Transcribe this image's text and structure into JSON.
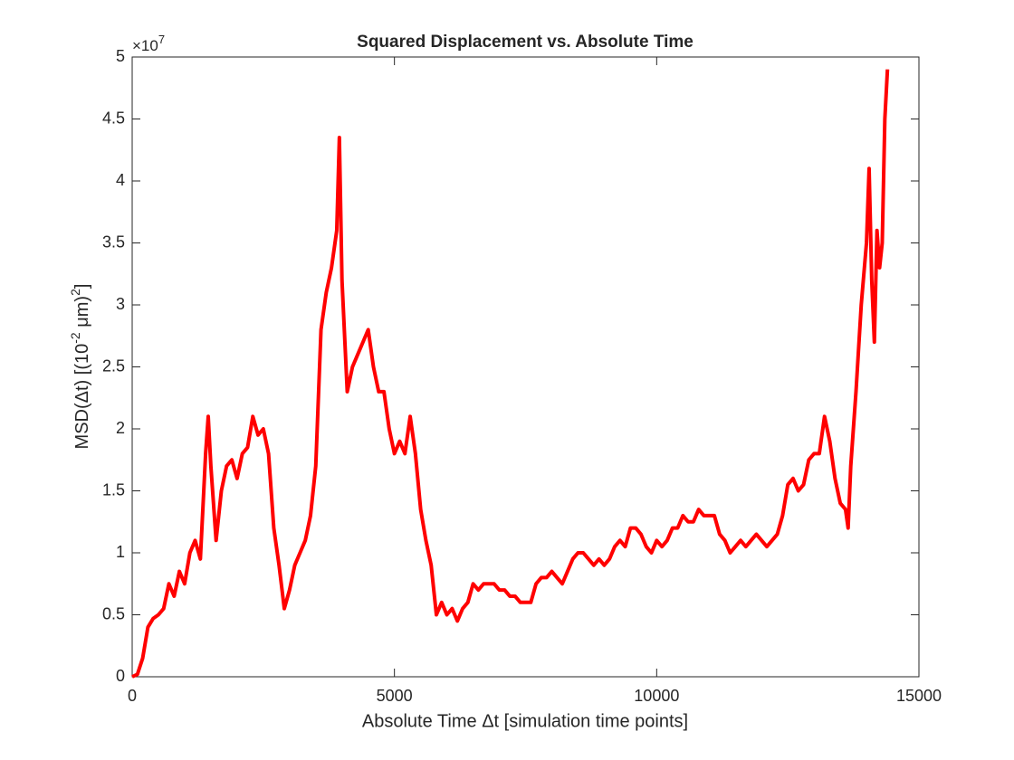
{
  "chart_data": {
    "type": "line",
    "title": "Squared Displacement vs. Absolute Time",
    "xlabel": "Absolute Time Δt [simulation time points]",
    "ylabel_parts": [
      "MSD(Δt) [(10",
      "-2",
      " μm)",
      "2",
      "]"
    ],
    "y_scale_label": {
      "base": "×10",
      "exponent": "7"
    },
    "xlim": [
      0,
      15000
    ],
    "xticks": [
      0,
      5000,
      10000,
      15000
    ],
    "ylim": [
      0,
      5
    ],
    "yticks": [
      0,
      0.5,
      1,
      1.5,
      2,
      2.5,
      3,
      3.5,
      4,
      4.5,
      5
    ],
    "grid": false,
    "x": [
      0,
      100,
      200,
      300,
      400,
      500,
      600,
      700,
      800,
      900,
      1000,
      1100,
      1200,
      1300,
      1400,
      1450,
      1500,
      1600,
      1700,
      1800,
      1900,
      2000,
      2100,
      2200,
      2300,
      2400,
      2500,
      2600,
      2700,
      2800,
      2900,
      3000,
      3100,
      3200,
      3300,
      3400,
      3500,
      3600,
      3700,
      3800,
      3900,
      3950,
      4000,
      4100,
      4200,
      4300,
      4400,
      4500,
      4600,
      4700,
      4800,
      4900,
      5000,
      5100,
      5200,
      5300,
      5400,
      5500,
      5600,
      5700,
      5800,
      5900,
      6000,
      6100,
      6200,
      6300,
      6400,
      6500,
      6600,
      6700,
      6800,
      6900,
      7000,
      7100,
      7200,
      7300,
      7400,
      7500,
      7600,
      7700,
      7800,
      7900,
      8000,
      8100,
      8200,
      8300,
      8400,
      8500,
      8600,
      8700,
      8800,
      8900,
      9000,
      9100,
      9200,
      9300,
      9400,
      9500,
      9600,
      9700,
      9800,
      9900,
      10000,
      10100,
      10200,
      10300,
      10400,
      10500,
      10600,
      10700,
      10800,
      10900,
      11000,
      11100,
      11200,
      11300,
      11400,
      11500,
      11600,
      11700,
      11800,
      11900,
      12000,
      12100,
      12200,
      12300,
      12400,
      12500,
      12600,
      12700,
      12800,
      12900,
      13000,
      13100,
      13200,
      13300,
      13400,
      13500,
      13600,
      13650,
      13700,
      13800,
      13900,
      14000,
      14050,
      14100,
      14150,
      14200,
      14250,
      14300,
      14350,
      14400
    ],
    "series": [
      {
        "color": "#ff0000",
        "values": [
          0,
          0.02,
          0.15,
          0.4,
          0.47,
          0.5,
          0.55,
          0.75,
          0.65,
          0.85,
          0.75,
          1.0,
          1.1,
          0.95,
          1.8,
          2.1,
          1.7,
          1.1,
          1.5,
          1.7,
          1.75,
          1.6,
          1.8,
          1.85,
          2.1,
          1.95,
          2.0,
          1.8,
          1.2,
          0.9,
          0.55,
          0.7,
          0.9,
          1.0,
          1.1,
          1.3,
          1.7,
          2.8,
          3.1,
          3.3,
          3.6,
          4.35,
          3.2,
          2.3,
          2.5,
          2.6,
          2.7,
          2.8,
          2.5,
          2.3,
          2.3,
          2.0,
          1.8,
          1.9,
          1.8,
          2.1,
          1.8,
          1.35,
          1.1,
          0.9,
          0.5,
          0.6,
          0.5,
          0.55,
          0.45,
          0.55,
          0.6,
          0.75,
          0.7,
          0.75,
          0.75,
          0.75,
          0.7,
          0.7,
          0.65,
          0.65,
          0.6,
          0.6,
          0.6,
          0.75,
          0.8,
          0.8,
          0.85,
          0.8,
          0.75,
          0.85,
          0.95,
          1.0,
          1.0,
          0.95,
          0.9,
          0.95,
          0.9,
          0.95,
          1.05,
          1.1,
          1.05,
          1.2,
          1.2,
          1.15,
          1.05,
          1.0,
          1.1,
          1.05,
          1.1,
          1.2,
          1.2,
          1.3,
          1.25,
          1.25,
          1.35,
          1.3,
          1.3,
          1.3,
          1.15,
          1.1,
          1.0,
          1.05,
          1.1,
          1.05,
          1.1,
          1.15,
          1.1,
          1.05,
          1.1,
          1.15,
          1.3,
          1.55,
          1.6,
          1.5,
          1.55,
          1.75,
          1.8,
          1.8,
          2.1,
          1.9,
          1.6,
          1.4,
          1.35,
          1.2,
          1.7,
          2.3,
          3.0,
          3.5,
          4.1,
          3.2,
          2.7,
          3.6,
          3.3,
          3.5,
          4.5,
          4.9
        ]
      }
    ]
  }
}
